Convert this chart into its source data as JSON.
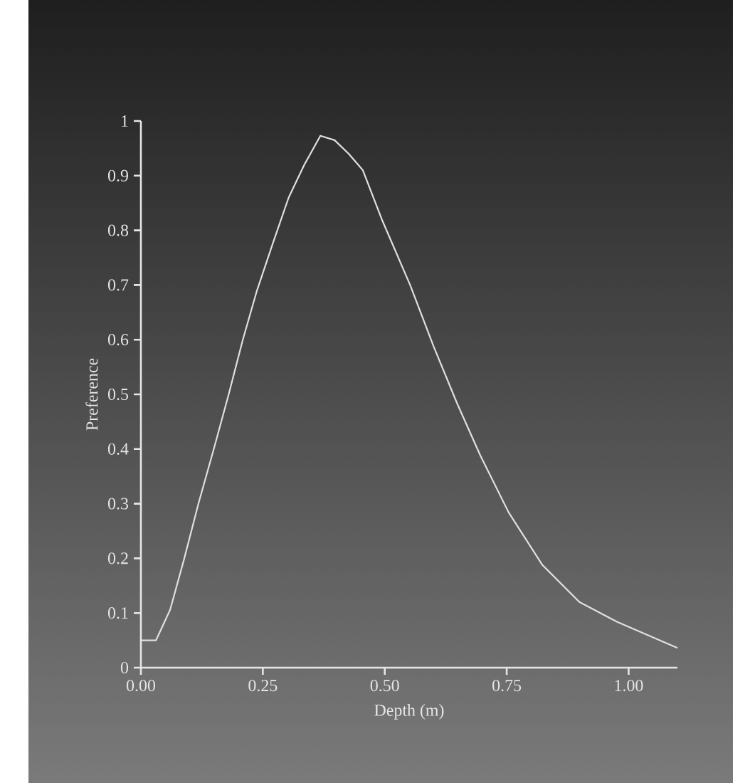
{
  "chart_data": {
    "type": "line",
    "xlabel": "Depth (m)",
    "ylabel": "Preference",
    "series": [
      {
        "color": "#e0e0e0",
        "x": [
          0,
          0.031,
          0.06,
          0.089,
          0.118,
          0.151,
          0.18,
          0.209,
          0.238,
          0.272,
          0.303,
          0.335,
          0.368,
          0.397,
          0.426,
          0.455,
          0.494,
          0.552,
          0.6,
          0.648,
          0.696,
          0.754,
          0.823,
          0.899,
          0.976,
          1.1
        ],
        "values": [
          0.05,
          0.05,
          0.106,
          0.2,
          0.3,
          0.405,
          0.5,
          0.6,
          0.69,
          0.78,
          0.86,
          0.92,
          0.973,
          0.965,
          0.94,
          0.91,
          0.82,
          0.7,
          0.588,
          0.484,
          0.388,
          0.284,
          0.188,
          0.12,
          0.084,
          0.036
        ]
      }
    ],
    "xlim": [
      0,
      1.1
    ],
    "ylim": [
      0,
      1
    ],
    "xticks": [
      {
        "value": 0,
        "label": "0.00"
      },
      {
        "value": 0.25,
        "label": "0.25"
      },
      {
        "value": 0.5,
        "label": "0.50"
      },
      {
        "value": 0.75,
        "label": "0.75"
      },
      {
        "value": 1,
        "label": "1.00"
      }
    ],
    "yticks": [
      0,
      0.1,
      0.2,
      0.3,
      0.4,
      0.5,
      0.6,
      0.7,
      0.8,
      0.9,
      1
    ],
    "marker": "none",
    "line_style": "solid"
  }
}
